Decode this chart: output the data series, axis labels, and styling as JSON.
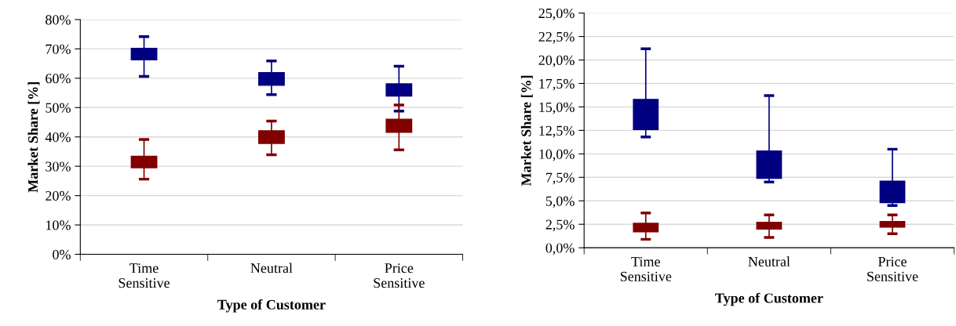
{
  "chart_data": [
    {
      "type": "box",
      "xlabel": "Type of Customer",
      "ylabel": "Market Share [%]",
      "categories": [
        "Time\nSensitive",
        "Neutral",
        "Price\nSensitive"
      ],
      "ylim": [
        0,
        80
      ],
      "yticks": [
        {
          "value": 0,
          "label": "0%"
        },
        {
          "value": 10,
          "label": "10%"
        },
        {
          "value": 20,
          "label": "20%"
        },
        {
          "value": 30,
          "label": "30%"
        },
        {
          "value": 40,
          "label": "40%"
        },
        {
          "value": 50,
          "label": "50%"
        },
        {
          "value": 60,
          "label": "60%"
        },
        {
          "value": 70,
          "label": "70%"
        },
        {
          "value": 80,
          "label": "80%"
        }
      ],
      "grid": "y",
      "series": [
        {
          "color": "#000080",
          "boxes": [
            {
              "low": 60.6,
              "q1": 66.3,
              "median": 68.2,
              "q3": 70.2,
              "high": 74.2
            },
            {
              "low": 54.4,
              "q1": 57.6,
              "median": 59.8,
              "q3": 61.9,
              "high": 65.9
            },
            {
              "low": 48.8,
              "q1": 53.9,
              "median": 56.0,
              "q3": 58.1,
              "high": 64.1
            }
          ]
        },
        {
          "color": "#800000",
          "boxes": [
            {
              "low": 25.6,
              "q1": 29.5,
              "median": 31.4,
              "q3": 33.4,
              "high": 39.1
            },
            {
              "low": 33.9,
              "q1": 37.8,
              "median": 40.0,
              "q3": 42.1,
              "high": 45.4
            },
            {
              "low": 35.6,
              "q1": 41.6,
              "median": 43.8,
              "q3": 46.0,
              "high": 50.9
            }
          ]
        }
      ]
    },
    {
      "type": "box",
      "xlabel": "Type of Customer",
      "ylabel": "Market Share [%]",
      "categories": [
        "Time\nSensitive",
        "Neutral",
        "Price\nSensitive"
      ],
      "ylim": [
        0,
        25
      ],
      "yticks": [
        {
          "value": 0,
          "label": "0,0%"
        },
        {
          "value": 2.5,
          "label": "2,5%"
        },
        {
          "value": 5,
          "label": "5,0%"
        },
        {
          "value": 7.5,
          "label": "7,5%"
        },
        {
          "value": 10,
          "label": "10,0%"
        },
        {
          "value": 12.5,
          "label": "12,5%"
        },
        {
          "value": 15,
          "label": "15,0%"
        },
        {
          "value": 17.5,
          "label": "17,5%"
        },
        {
          "value": 20,
          "label": "20,0%"
        },
        {
          "value": 22.5,
          "label": "22,5%"
        },
        {
          "value": 25,
          "label": "25,0%"
        }
      ],
      "grid": "y",
      "series": [
        {
          "color": "#000080",
          "boxes": [
            {
              "low": 11.8,
              "q1": 12.6,
              "median": 14.2,
              "q3": 15.8,
              "high": 21.2
            },
            {
              "low": 7.0,
              "q1": 7.4,
              "median": 8.9,
              "q3": 10.3,
              "high": 16.2
            },
            {
              "low": 4.5,
              "q1": 4.8,
              "median": 6.0,
              "q3": 7.1,
              "high": 10.5
            }
          ]
        },
        {
          "color": "#800000",
          "boxes": [
            {
              "low": 0.9,
              "q1": 1.7,
              "median": 2.2,
              "q3": 2.6,
              "high": 3.7
            },
            {
              "low": 1.1,
              "q1": 2.0,
              "median": 2.4,
              "q3": 2.7,
              "high": 3.5
            },
            {
              "low": 1.5,
              "q1": 2.2,
              "median": 2.5,
              "q3": 2.8,
              "high": 3.5
            }
          ]
        }
      ]
    }
  ]
}
